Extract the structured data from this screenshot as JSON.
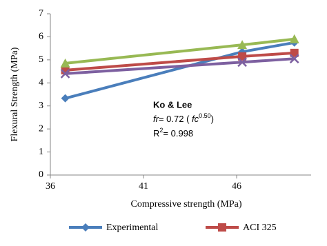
{
  "chart_data": {
    "type": "line",
    "x_label": "Compressive strength (MPa)",
    "y_label": "Flexural Strength (MPa)",
    "xlim": [
      36,
      50
    ],
    "xticks": [
      36,
      41,
      46
    ],
    "ylim": [
      0,
      7
    ],
    "yticks": [
      0,
      1,
      2,
      3,
      4,
      5,
      6,
      7
    ],
    "x": [
      36.8,
      46.3,
      49.1
    ],
    "series": [
      {
        "name": "Experimental",
        "color": "#4a7ebb",
        "marker": "diamond",
        "values": [
          3.33,
          5.35,
          5.75
        ]
      },
      {
        "name": "ACI 325",
        "color": "#be4b48",
        "marker": "square",
        "values": [
          4.55,
          5.15,
          5.3
        ]
      },
      {
        "color": "#98b954",
        "marker": "triangle",
        "values": [
          4.85,
          5.65,
          5.9
        ]
      },
      {
        "color": "#7d60a0",
        "marker": "cross",
        "values": [
          4.4,
          4.9,
          5.05
        ]
      }
    ],
    "annotation": {
      "title": "Ko & Lee",
      "equation": [
        "fr",
        "= 0.72 ( ",
        "fc",
        "0.50",
        ")"
      ],
      "r2": [
        "R",
        "2",
        "= 0.998"
      ]
    }
  }
}
